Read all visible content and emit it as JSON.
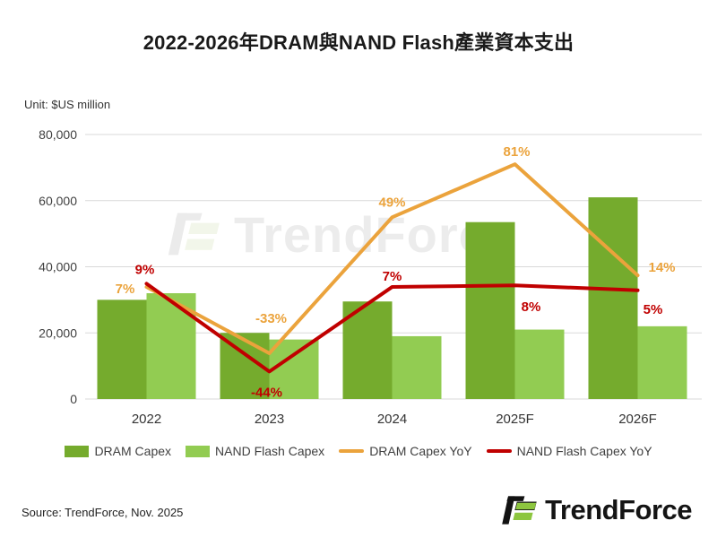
{
  "title": "2022-2026年DRAM與NAND Flash產業資本支出",
  "unit_label": "Unit: $US million",
  "source": "Source: TrendForce, Nov. 2025",
  "watermark_text": "TrendForce",
  "logo_text": "TrendForce",
  "colors": {
    "dram_bar": "#75AB2D",
    "nand_bar": "#92CC52",
    "dram_yoy_line": "#EBA33C",
    "nand_yoy_line": "#C00000",
    "gridline": "#D9D9D9",
    "axis_text": "#404040",
    "title_text": "#1A1A1A"
  },
  "chart_data": {
    "type": "bar+line combo",
    "title": "2022-2026年DRAM與NAND Flash產業資本支出",
    "ylabel": "Unit: $US million",
    "categories": [
      "2022",
      "2023",
      "2024",
      "2025F",
      "2026F"
    ],
    "ylim": [
      0,
      80000
    ],
    "yticks": [
      {
        "v": 0,
        "label": "0"
      },
      {
        "v": 20000,
        "label": "20,000"
      },
      {
        "v": 40000,
        "label": "40,000"
      },
      {
        "v": 60000,
        "label": "60,000"
      },
      {
        "v": 80000,
        "label": "80,000"
      }
    ],
    "grid": "horizontal only",
    "legend_position": "bottom",
    "series": [
      {
        "name": "DRAM Capex",
        "type": "bar",
        "color": "#75AB2D",
        "values": [
          30000,
          20000,
          29500,
          53500,
          61000
        ]
      },
      {
        "name": "NAND Flash Capex",
        "type": "bar",
        "color": "#92CC52",
        "values": [
          32000,
          18000,
          19000,
          21000,
          22000
        ]
      },
      {
        "name": "DRAM Capex YoY",
        "type": "line",
        "color": "#EBA33C",
        "values_pct": [
          7,
          -33,
          49,
          81,
          14
        ],
        "labels": [
          "7%",
          "-33%",
          "49%",
          "81%",
          "14%"
        ]
      },
      {
        "name": "NAND Flash Capex YoY",
        "type": "line",
        "color": "#C00000",
        "values_pct": [
          9,
          -44,
          7,
          8,
          5
        ],
        "labels": [
          "9%",
          "-44%",
          "7%",
          "8%",
          "5%"
        ]
      }
    ]
  }
}
